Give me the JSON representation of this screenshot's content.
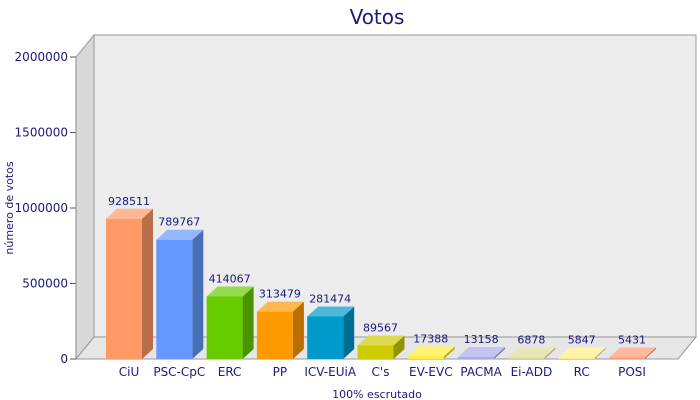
{
  "chart_data": {
    "type": "bar",
    "title": "Votos",
    "xlabel": "100% escrutado",
    "ylabel": "número de votos",
    "ylim": [
      0,
      2000000
    ],
    "yticks": [
      0,
      500000,
      1000000,
      1500000,
      2000000
    ],
    "grid": false,
    "categories": [
      "CiU",
      "PSC-CpC",
      "ERC",
      "PP",
      "ICV-EUiA",
      "C's",
      "EV-EVC",
      "PACMA",
      "Ei-ADD",
      "RC",
      "POSI"
    ],
    "values": [
      928511,
      789767,
      414067,
      313479,
      281474,
      89567,
      17388,
      13158,
      6878,
      5847,
      5431
    ],
    "colors": [
      "#ff9966",
      "#6699ff",
      "#66cc00",
      "#ff9900",
      "#0099cc",
      "#cccc00",
      "#ffee33",
      "#aaaaee",
      "#dddd99",
      "#ffee88",
      "#ff9977"
    ]
  }
}
